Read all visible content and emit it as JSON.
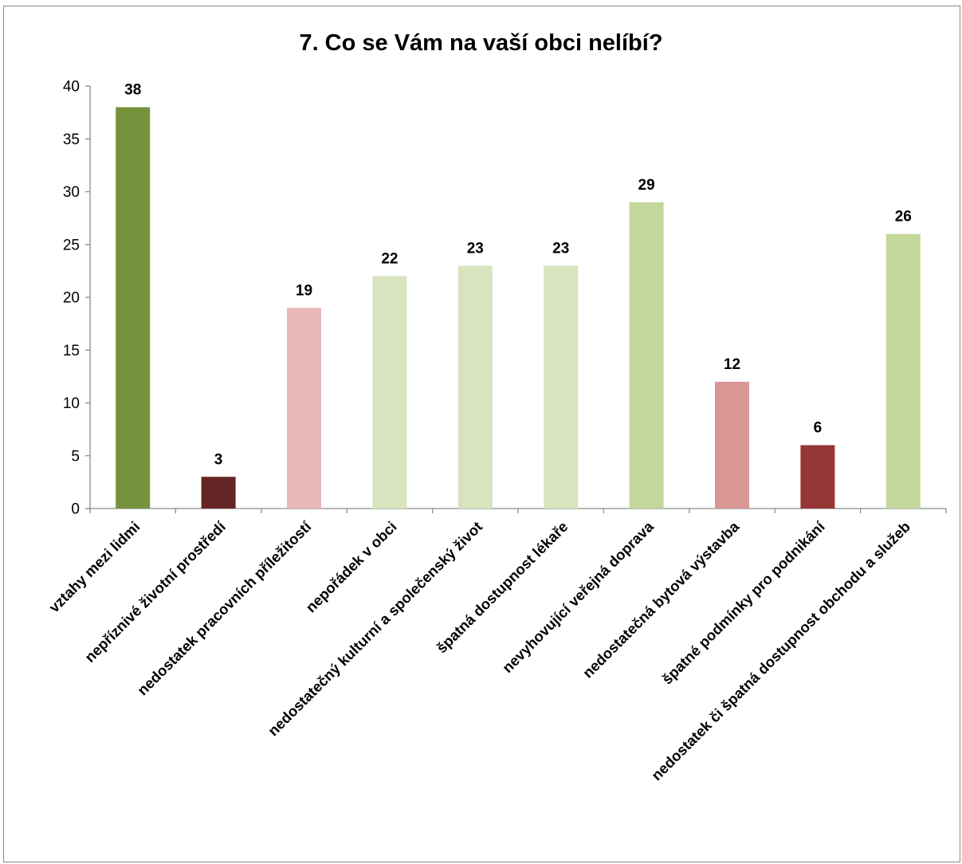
{
  "chart_data": {
    "type": "bar",
    "title": "7. Co se Vám na vaší obci nelíbí?",
    "xlabel": "",
    "ylabel": "",
    "ylim": [
      0,
      40
    ],
    "yticks": [
      0,
      5,
      10,
      15,
      20,
      25,
      30,
      35,
      40
    ],
    "grid": false,
    "legend": "none",
    "categories": [
      "vztahy mezi lidmi",
      "nepříznivé životní prostředí",
      "nedostatek pracovních příležitostí",
      "nepořádek v obci",
      "nedostatečný kulturní a společenský život",
      "špatná dostupnost lékaře",
      "nevyhovující veřejná doprava",
      "nedostatečná bytová výstavba",
      "špatné podmínky pro podnikání",
      "nedostatek či špatná dostupnost obchodu a služeb"
    ],
    "values": [
      38,
      3,
      19,
      22,
      23,
      23,
      29,
      12,
      6,
      26
    ],
    "colors": [
      "#76923c",
      "#632523",
      "#e6b9b8",
      "#d7e4bd",
      "#d7e4bd",
      "#d7e4bd",
      "#c3d69b",
      "#d99694",
      "#953735",
      "#c3d69b"
    ]
  }
}
